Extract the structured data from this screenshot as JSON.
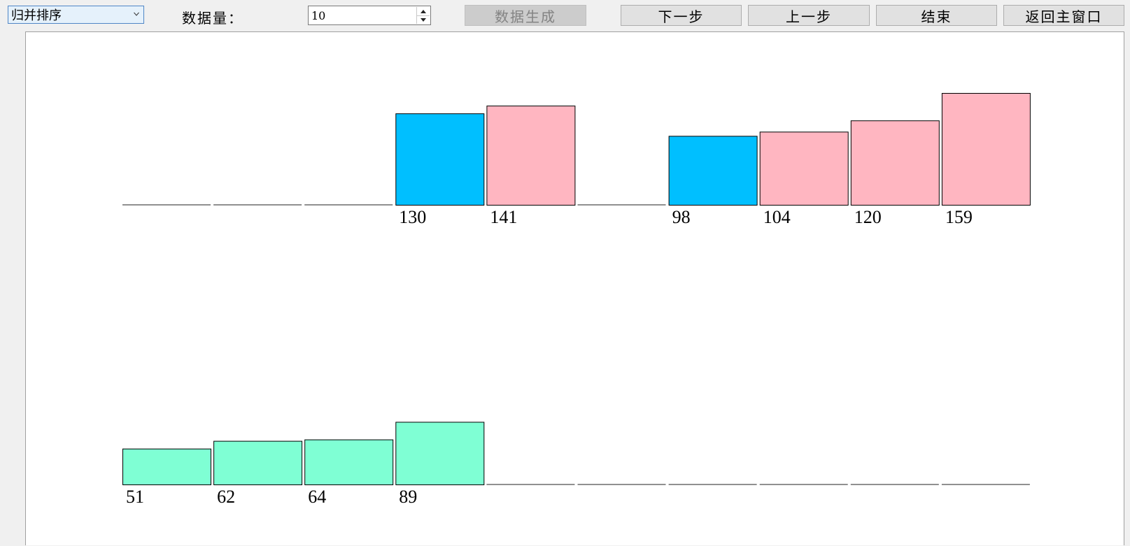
{
  "toolbar": {
    "algorithm_select": {
      "selected": "归并排序"
    },
    "count_label": "数据量：",
    "count_value": "10",
    "generate_label": "数据生成",
    "next_label": "下一步",
    "prev_label": "上一步",
    "end_label": "结束",
    "back_label": "返回主窗口"
  },
  "colors": {
    "left_sub": "#00bfff",
    "right_sub": "#ffb6c1",
    "merged": "#7fffd4"
  },
  "chart_data": {
    "type": "bar",
    "slots": 10,
    "value_max": 159,
    "upper_row": [
      {
        "slot": 3,
        "value": 130,
        "label": "130",
        "color": "#00bfff"
      },
      {
        "slot": 4,
        "value": 141,
        "label": "141",
        "color": "#ffb6c1"
      },
      {
        "slot": 6,
        "value": 98,
        "label": "98",
        "color": "#00bfff"
      },
      {
        "slot": 7,
        "value": 104,
        "label": "104",
        "color": "#ffb6c1"
      },
      {
        "slot": 8,
        "value": 120,
        "label": "120",
        "color": "#ffb6c1"
      },
      {
        "slot": 9,
        "value": 159,
        "label": "159",
        "color": "#ffb6c1"
      }
    ],
    "lower_row": [
      {
        "slot": 0,
        "value": 51,
        "label": "51",
        "color": "#7fffd4"
      },
      {
        "slot": 1,
        "value": 62,
        "label": "62",
        "color": "#7fffd4"
      },
      {
        "slot": 2,
        "value": 64,
        "label": "64",
        "color": "#7fffd4"
      },
      {
        "slot": 3,
        "value": 89,
        "label": "89",
        "color": "#7fffd4"
      }
    ]
  }
}
